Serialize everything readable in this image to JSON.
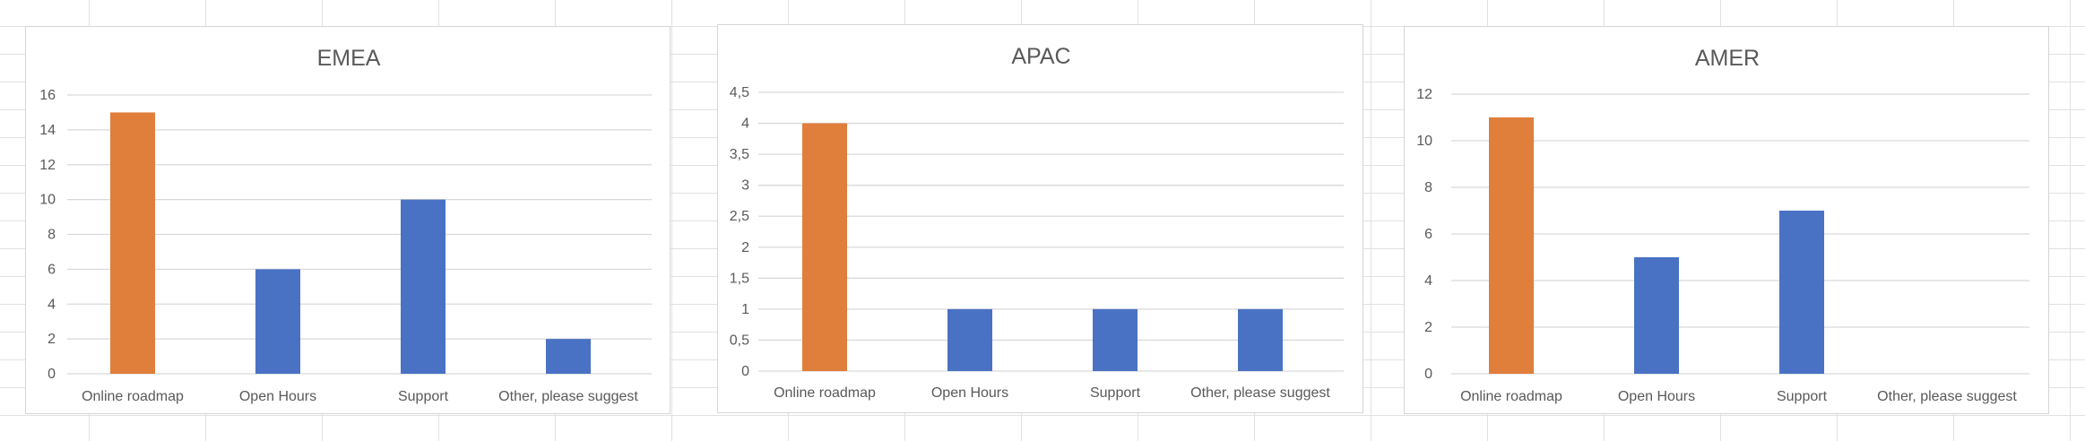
{
  "chart_data": [
    {
      "type": "bar",
      "title": "EMEA",
      "categories": [
        "Online roadmap",
        "Open Hours",
        "Support",
        "Other, please suggest"
      ],
      "values": [
        15,
        6,
        10,
        2
      ],
      "ylim": [
        0,
        16
      ],
      "yticks": [
        "0",
        "2",
        "4",
        "6",
        "8",
        "10",
        "12",
        "14",
        "16"
      ],
      "grid": true,
      "legend": "none",
      "bar_colors": [
        "#E07E3C",
        "#4A72C4",
        "#4A72C4",
        "#4A72C4"
      ]
    },
    {
      "type": "bar",
      "title": "APAC",
      "categories": [
        "Online roadmap",
        "Open Hours",
        "Support",
        "Other, please suggest"
      ],
      "values": [
        4,
        1,
        1,
        1
      ],
      "ylim": [
        0,
        4.5
      ],
      "yticks": [
        "0",
        "0,5",
        "1",
        "1,5",
        "2",
        "2,5",
        "3",
        "3,5",
        "4",
        "4,5"
      ],
      "grid": true,
      "legend": "none",
      "bar_colors": [
        "#E07E3C",
        "#4A72C4",
        "#4A72C4",
        "#4A72C4"
      ]
    },
    {
      "type": "bar",
      "title": "AMER",
      "categories": [
        "Online roadmap",
        "Open Hours",
        "Support",
        "Other, please suggest"
      ],
      "values": [
        11,
        5,
        7,
        0
      ],
      "ylim": [
        0,
        12
      ],
      "yticks": [
        "0",
        "2",
        "4",
        "6",
        "8",
        "10",
        "12"
      ],
      "grid": true,
      "legend": "none",
      "bar_colors": [
        "#E07E3C",
        "#4A72C4",
        "#4A72C4",
        "#4A72C4"
      ]
    }
  ]
}
